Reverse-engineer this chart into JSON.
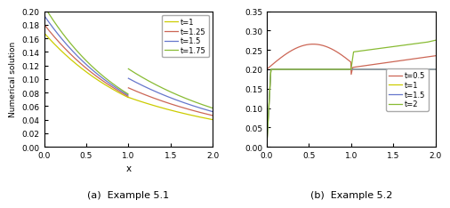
{
  "ex1": {
    "title": "(a)  Example 5.1",
    "xlabel": "x",
    "ylabel": "Numerical solution",
    "xlim": [
      0,
      2
    ],
    "ylim": [
      0,
      0.2
    ],
    "yticks": [
      0,
      0.02,
      0.04,
      0.06,
      0.08,
      0.1,
      0.12,
      0.14,
      0.16,
      0.18,
      0.2
    ],
    "xticks": [
      0,
      0.5,
      1,
      1.5,
      2
    ],
    "lines": [
      {
        "label": "t=1",
        "color": "#cccc00",
        "lw": 0.9
      },
      {
        "label": "t=1.25",
        "color": "#cc6655",
        "lw": 0.9
      },
      {
        "label": "t=1.5",
        "color": "#6677cc",
        "lw": 0.9
      },
      {
        "label": "t=1.75",
        "color": "#88bb33",
        "lw": 0.9
      }
    ]
  },
  "ex2": {
    "title": "(b)  Example 5.2",
    "xlabel": "",
    "ylabel": "",
    "xlim": [
      0,
      2
    ],
    "ylim": [
      0,
      0.35
    ],
    "yticks": [
      0,
      0.05,
      0.1,
      0.15,
      0.2,
      0.25,
      0.3,
      0.35
    ],
    "xticks": [
      0,
      0.5,
      1,
      1.5,
      2
    ],
    "lines": [
      {
        "label": "t=0.5",
        "color": "#cc6655",
        "lw": 0.9
      },
      {
        "label": "t=1",
        "color": "#cccc00",
        "lw": 0.9
      },
      {
        "label": "t=1.5",
        "color": "#6677cc",
        "lw": 0.9
      },
      {
        "label": "t=2",
        "color": "#88bb33",
        "lw": 0.9
      }
    ]
  }
}
